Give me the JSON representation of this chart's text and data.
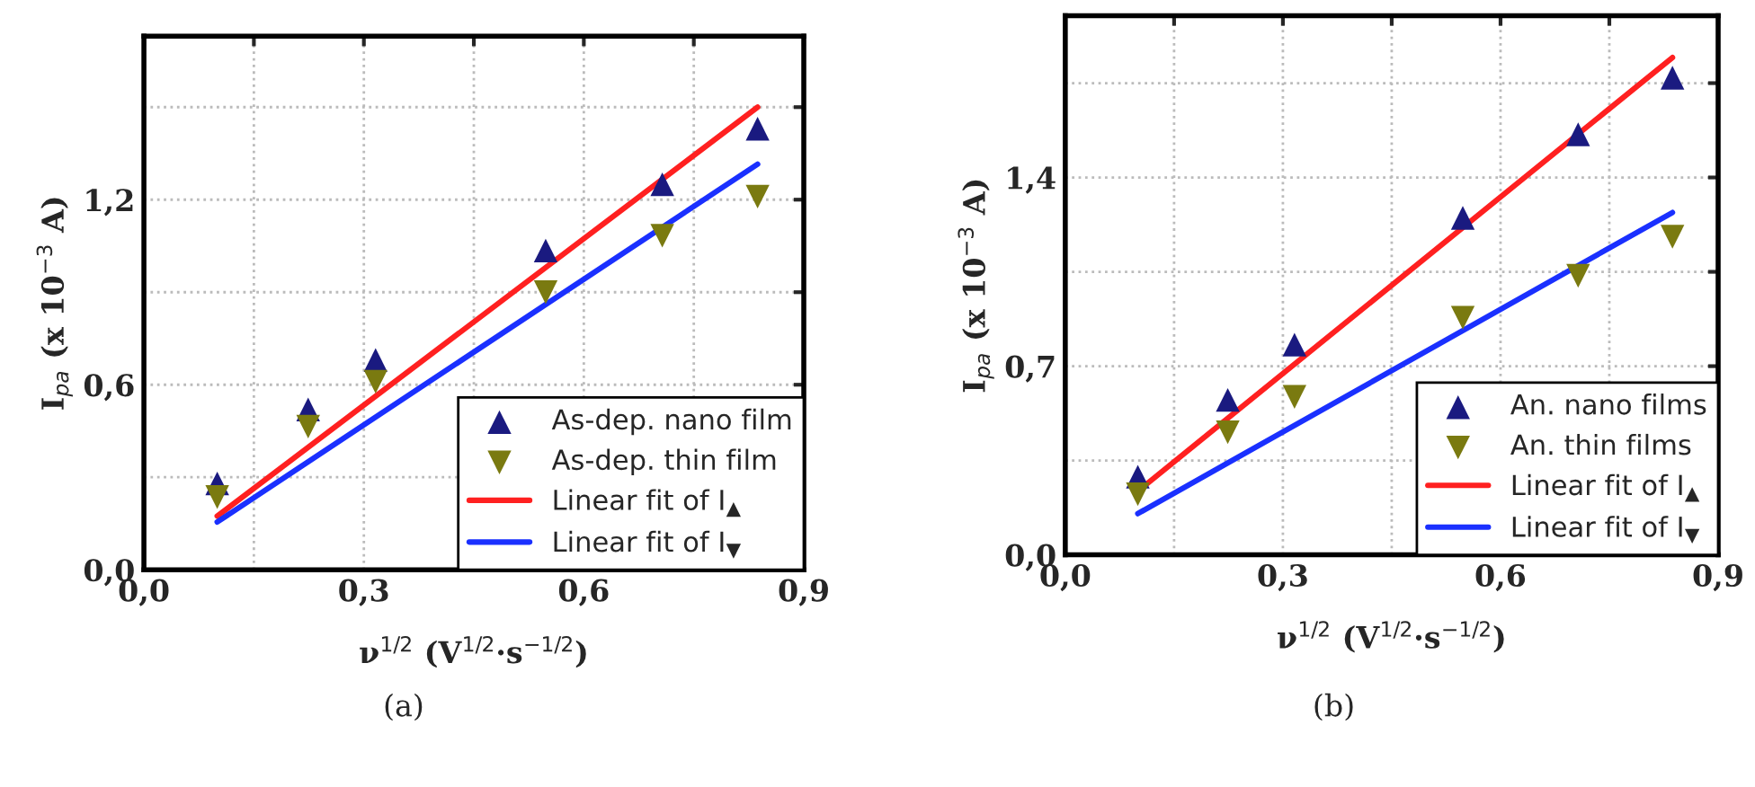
{
  "chart_data": [
    {
      "type": "scatter",
      "xlabel": "ν$^{1/2}$ (V$^{1/2}$·s$^{−1/2}$)",
      "ylabel": "I$_{pa}$ (x 10$^{−3}$ A)",
      "annotations": [
        "(a)"
      ],
      "xlim": [
        0,
        0.9
      ],
      "xticks": [
        {
          "value": 0.0,
          "label": "0,0"
        },
        {
          "value": 0.15,
          "label": null
        },
        {
          "value": 0.3,
          "label": "0,3"
        },
        {
          "value": 0.45,
          "label": null
        },
        {
          "value": 0.6,
          "label": "0,6"
        },
        {
          "value": 0.75,
          "label": null
        },
        {
          "value": 0.9,
          "label": "0,9"
        }
      ],
      "ylim": [
        0,
        1.73
      ],
      "yticks": [
        {
          "value": 0.0,
          "label": "0,0"
        },
        {
          "value": 0.3,
          "label": null
        },
        {
          "value": 0.6,
          "label": "0,6"
        },
        {
          "value": 0.9,
          "label": null
        },
        {
          "value": 1.2,
          "label": "1,2"
        },
        {
          "value": 1.5,
          "label": null
        }
      ],
      "grid": true,
      "legend": "bottom right",
      "series": [
        {
          "name": "As-dep. nano film",
          "marker": "triangle",
          "color": "#1a1a80",
          "x": [
            0.1,
            0.224,
            0.316,
            0.548,
            0.707,
            0.837
          ],
          "values": [
            0.28,
            0.52,
            0.68,
            1.035,
            1.25,
            1.43
          ]
        },
        {
          "name": "As-dep. thin film",
          "marker": "triangle_down",
          "color": "#7a7a10",
          "x": [
            0.1,
            0.224,
            0.316,
            0.548,
            0.707,
            0.837
          ],
          "values": [
            0.236,
            0.464,
            0.61,
            0.9,
            1.083,
            1.21
          ]
        },
        {
          "name": "Linear fit of I$_{▲}$",
          "type": "line",
          "marker": "none",
          "color": "#ff2020",
          "x": [
            0.1,
            0.837
          ],
          "values": [
            0.174,
            1.5
          ]
        },
        {
          "name": "Linear fit of I$_{▼}$",
          "type": "line",
          "marker": "none",
          "color": "#1a30ff",
          "x": [
            0.1,
            0.837
          ],
          "values": [
            0.155,
            1.315
          ]
        }
      ]
    },
    {
      "type": "scatter",
      "xlabel": "ν$^{1/2}$ (V$^{1/2}$·s$^{−1/2}$)",
      "ylabel": "I$_{pa}$ (x 10$^{−3}$ A)",
      "annotations": [
        "(b)"
      ],
      "xlim": [
        0,
        0.9
      ],
      "xticks": [
        {
          "value": 0.0,
          "label": "0,0"
        },
        {
          "value": 0.15,
          "label": null
        },
        {
          "value": 0.3,
          "label": "0,3"
        },
        {
          "value": 0.45,
          "label": null
        },
        {
          "value": 0.6,
          "label": "0,6"
        },
        {
          "value": 0.75,
          "label": null
        },
        {
          "value": 0.9,
          "label": "0,9"
        }
      ],
      "ylim": [
        0,
        2.0
      ],
      "yticks": [
        {
          "value": 0.0,
          "label": "0,0"
        },
        {
          "value": 0.35,
          "label": null
        },
        {
          "value": 0.7,
          "label": "0,7"
        },
        {
          "value": 1.05,
          "label": null
        },
        {
          "value": 1.4,
          "label": "1,4"
        },
        {
          "value": 1.75,
          "label": null
        }
      ],
      "grid": true,
      "legend": "bottom right",
      "series": [
        {
          "name": "An. nano films",
          "marker": "triangle",
          "color": "#1a1a80",
          "x": [
            0.1,
            0.224,
            0.316,
            0.548,
            0.707,
            0.837
          ],
          "values": [
            0.29,
            0.575,
            0.78,
            1.25,
            1.56,
            1.77
          ]
        },
        {
          "name": "An. thin films",
          "marker": "triangle_down",
          "color": "#7a7a10",
          "x": [
            0.1,
            0.224,
            0.316,
            0.548,
            0.707,
            0.837
          ],
          "values": [
            0.225,
            0.455,
            0.586,
            0.88,
            1.035,
            1.18
          ]
        },
        {
          "name": "Linear fit of I$_{▲}$",
          "type": "line",
          "marker": "none",
          "color": "#ff2020",
          "x": [
            0.1,
            0.837
          ],
          "values": [
            0.236,
            1.845
          ]
        },
        {
          "name": "Linear fit of I$_{▼}$",
          "type": "line",
          "marker": "none",
          "color": "#1a30ff",
          "x": [
            0.1,
            0.837
          ],
          "values": [
            0.153,
            1.27
          ]
        }
      ]
    }
  ]
}
